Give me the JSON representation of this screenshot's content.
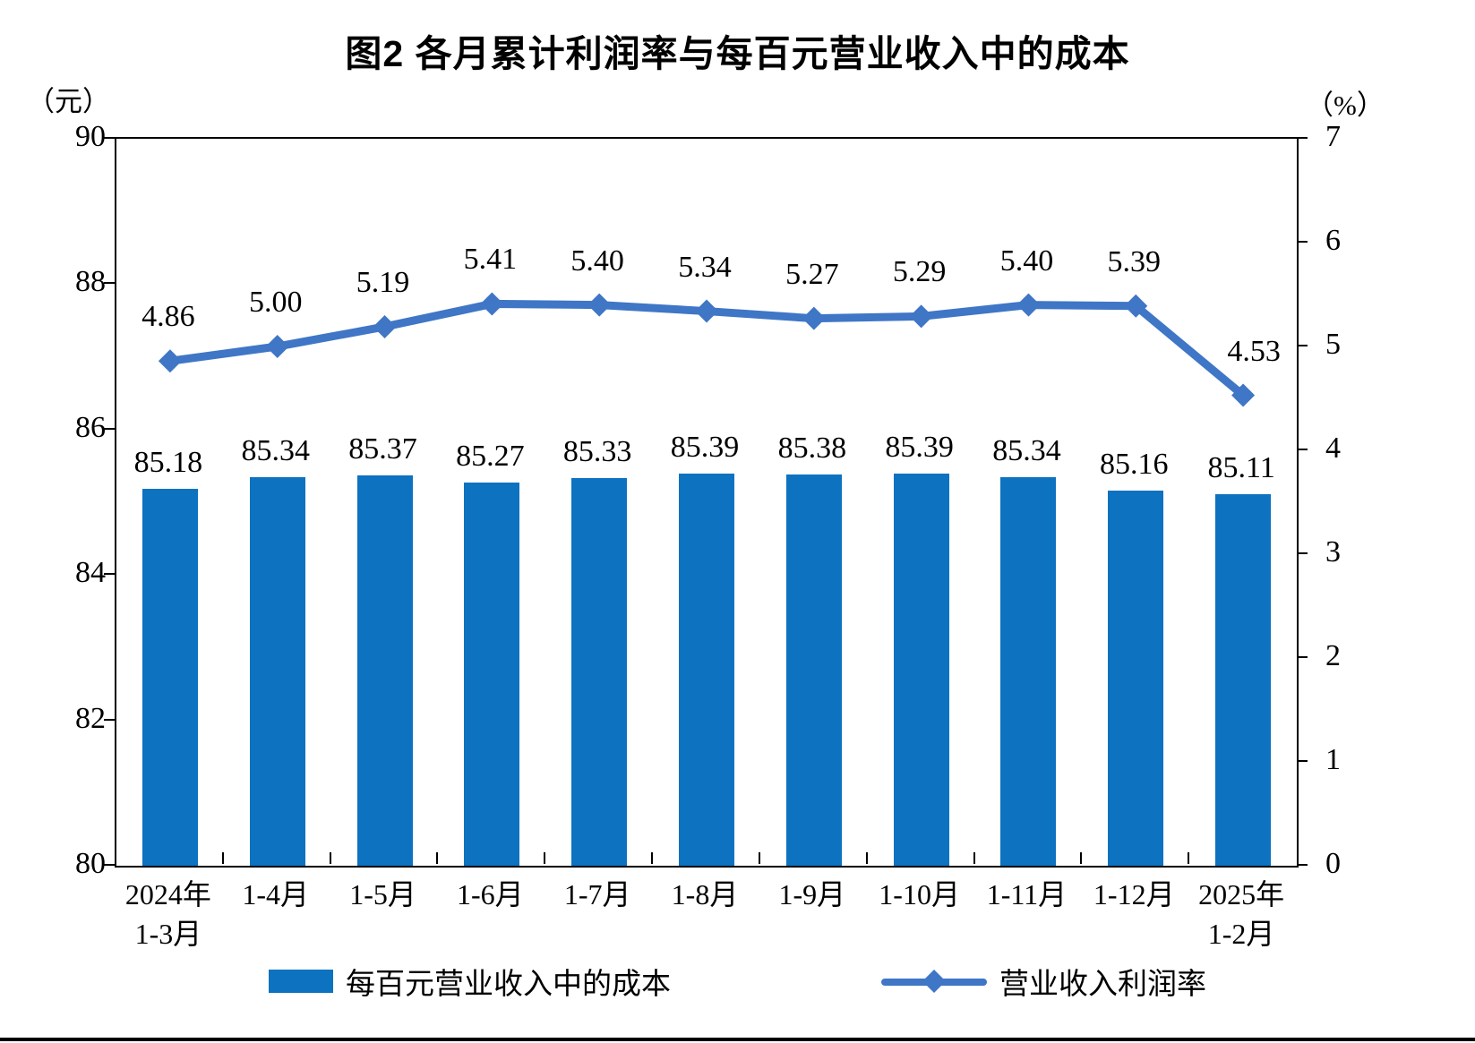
{
  "page": {
    "title": "图2  各月累计利润率与每百元营业收入中的成本"
  },
  "chart_data": {
    "type": "bar",
    "subtype": "bar-line-combo",
    "title": "图2  各月累计利润率与每百元营业收入中的成本",
    "categories": [
      [
        "2024年",
        "1-3月"
      ],
      [
        "1-4月"
      ],
      [
        "1-5月"
      ],
      [
        "1-6月"
      ],
      [
        "1-7月"
      ],
      [
        "1-8月"
      ],
      [
        "1-9月"
      ],
      [
        "1-10月"
      ],
      [
        "1-11月"
      ],
      [
        "1-12月"
      ],
      [
        "2025年",
        "1-2月"
      ]
    ],
    "series": [
      {
        "name": "每百元营业收入中的成本",
        "type": "bar",
        "axis": "left",
        "color": "#0d72c0",
        "values": [
          85.18,
          85.34,
          85.37,
          85.27,
          85.33,
          85.39,
          85.38,
          85.39,
          85.34,
          85.16,
          85.11
        ]
      },
      {
        "name": "营业收入利润率",
        "type": "line",
        "axis": "right",
        "color": "#3f76c6",
        "marker": "diamond",
        "values": [
          4.86,
          5.0,
          5.19,
          5.41,
          5.4,
          5.34,
          5.27,
          5.29,
          5.4,
          5.39,
          4.53
        ]
      }
    ],
    "value_label_format": "0.00",
    "left_axis": {
      "unit": "（元）",
      "min": 80,
      "max": 90,
      "ticks": [
        80,
        82,
        84,
        86,
        88,
        90
      ]
    },
    "right_axis": {
      "unit": "（%）",
      "min": 0,
      "max": 7,
      "ticks": [
        0,
        1,
        2,
        3,
        4,
        5,
        6,
        7
      ]
    },
    "grid": false,
    "legend_position": "bottom"
  }
}
